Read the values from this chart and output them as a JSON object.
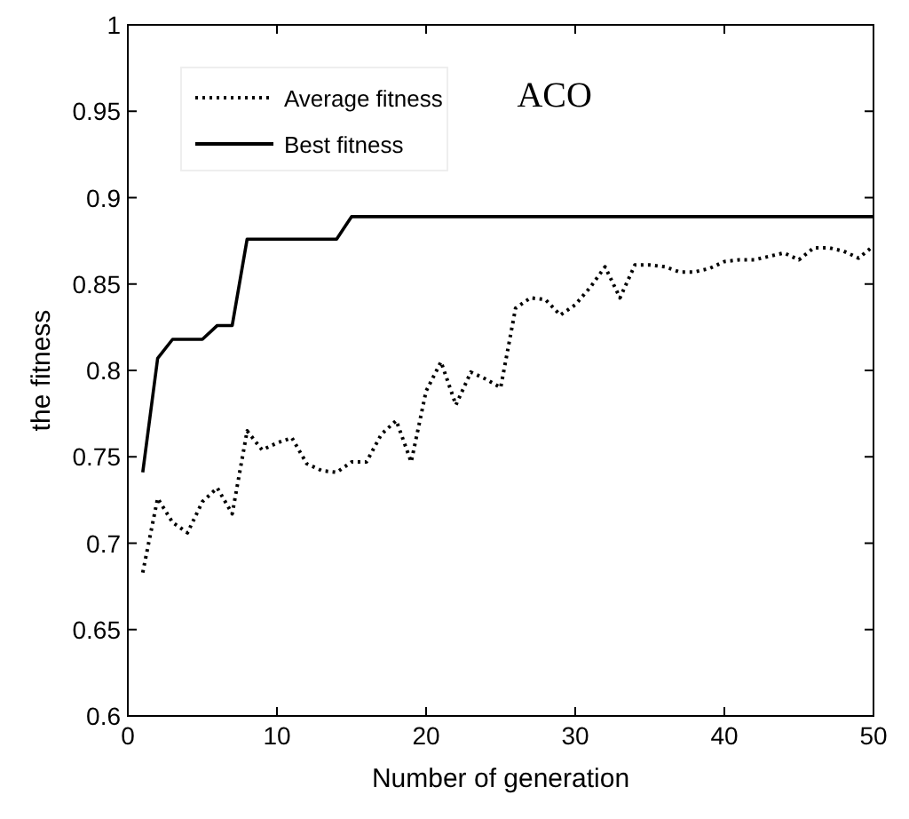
{
  "chart_data": {
    "type": "line",
    "xlabel": "Number of generation",
    "ylabel": "the fitness",
    "annotations": [
      "ACO"
    ],
    "x": [
      1,
      2,
      3,
      4,
      5,
      6,
      7,
      8,
      9,
      10,
      11,
      12,
      13,
      14,
      15,
      16,
      17,
      18,
      19,
      20,
      21,
      22,
      23,
      24,
      25,
      26,
      27,
      28,
      29,
      30,
      31,
      32,
      33,
      34,
      35,
      36,
      37,
      38,
      39,
      40,
      41,
      42,
      43,
      44,
      45,
      46,
      47,
      48,
      49,
      50
    ],
    "series": [
      {
        "name": "Average fitness",
        "color": "#000000",
        "line_style": "dotted",
        "values": [
          0.683,
          0.726,
          0.712,
          0.706,
          0.724,
          0.732,
          0.717,
          0.765,
          0.754,
          0.758,
          0.761,
          0.746,
          0.742,
          0.741,
          0.747,
          0.747,
          0.763,
          0.771,
          0.747,
          0.788,
          0.805,
          0.78,
          0.799,
          0.795,
          0.79,
          0.836,
          0.842,
          0.841,
          0.832,
          0.838,
          0.848,
          0.86,
          0.842,
          0.861,
          0.861,
          0.86,
          0.857,
          0.857,
          0.859,
          0.863,
          0.864,
          0.864,
          0.866,
          0.868,
          0.864,
          0.871,
          0.871,
          0.869,
          0.865,
          0.872
        ]
      },
      {
        "name": "Best fitness",
        "color": "#000000",
        "line_style": "solid",
        "values": [
          0.741,
          0.807,
          0.818,
          0.818,
          0.818,
          0.826,
          0.826,
          0.876,
          0.876,
          0.876,
          0.876,
          0.876,
          0.876,
          0.876,
          0.889,
          0.889,
          0.889,
          0.889,
          0.889,
          0.889,
          0.889,
          0.889,
          0.889,
          0.889,
          0.889,
          0.889,
          0.889,
          0.889,
          0.889,
          0.889,
          0.889,
          0.889,
          0.889,
          0.889,
          0.889,
          0.889,
          0.889,
          0.889,
          0.889,
          0.889,
          0.889,
          0.889,
          0.889,
          0.889,
          0.889,
          0.889,
          0.889,
          0.889,
          0.889,
          0.889
        ]
      }
    ],
    "xlim": [
      0,
      50
    ],
    "xticks": [
      0,
      10,
      20,
      30,
      40,
      50
    ],
    "ylim": [
      0.6,
      1
    ],
    "yticks": [
      0.6,
      0.65,
      0.7,
      0.75,
      0.8,
      0.85,
      0.9,
      0.95,
      1
    ],
    "grid": false,
    "legend": "top left"
  }
}
